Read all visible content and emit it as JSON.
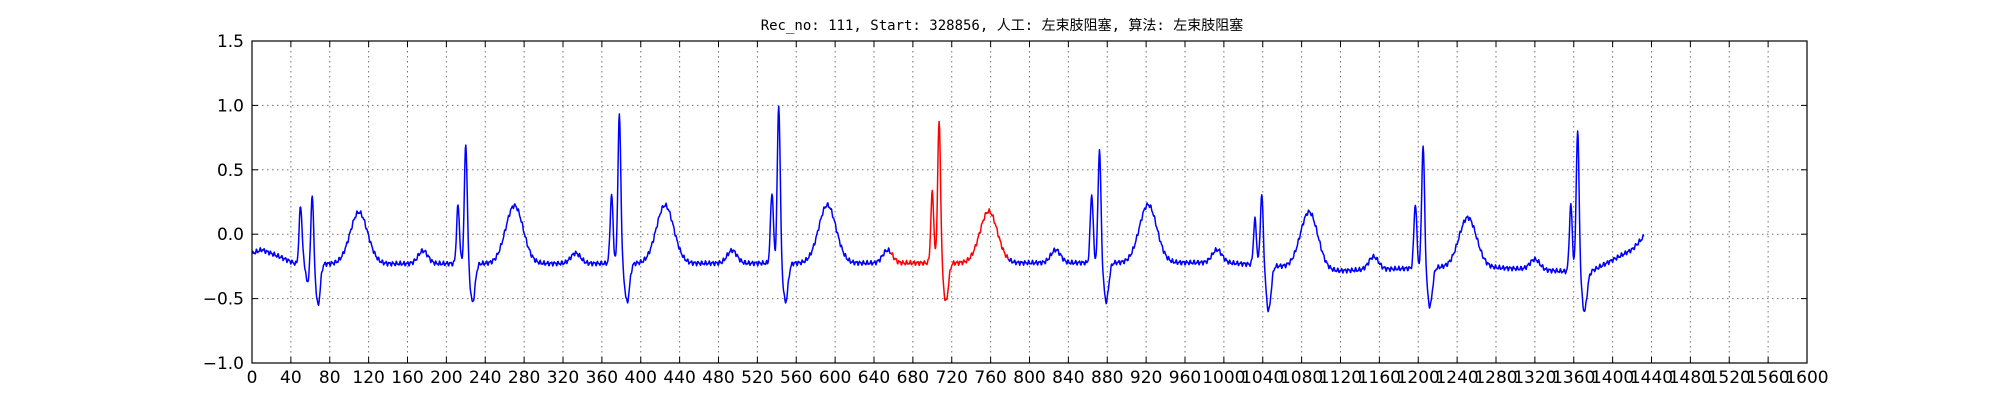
{
  "chart_data": {
    "type": "line",
    "title": "Rec_no: 111, Start: 328856, 人工: 左束肢阻塞, 算法: 左束肢阻塞",
    "xlabel": "",
    "ylabel": "",
    "xlim": [
      0,
      1600
    ],
    "ylim": [
      -1.0,
      1.5
    ],
    "grid": true,
    "yticks": [
      -1.0,
      -0.5,
      0.0,
      0.5,
      1.0,
      1.5
    ],
    "ytick_labels": [
      "−1.0",
      "−0.5",
      "0.0",
      "0.5",
      "1.0",
      "1.5"
    ],
    "xticks": [
      0,
      40,
      80,
      120,
      160,
      200,
      240,
      280,
      320,
      360,
      400,
      440,
      480,
      520,
      560,
      600,
      640,
      680,
      720,
      760,
      800,
      840,
      880,
      920,
      960,
      1000,
      1040,
      1080,
      1120,
      1160,
      1200,
      1240,
      1280,
      1320,
      1360,
      1400,
      1440,
      1480,
      1520,
      1560,
      1600
    ],
    "xtick_labels": [
      "0",
      "40",
      "80",
      "120",
      "160",
      "200",
      "240",
      "280",
      "320",
      "360",
      "400",
      "440",
      "480",
      "520",
      "560",
      "600",
      "640",
      "680",
      "720",
      "760",
      "800",
      "840",
      "880",
      "920",
      "960",
      "1000",
      "1040",
      "1080",
      "1120",
      "1160",
      "1200",
      "1240",
      "1280",
      "1320",
      "1360",
      "1400",
      "1440",
      "1480",
      "1520",
      "1560",
      "1600"
    ],
    "x_extent": [
      0,
      1432
    ],
    "baseline_points": [
      [
        0,
        -0.15
      ],
      [
        10,
        -0.12
      ],
      [
        30,
        -0.18
      ],
      [
        45,
        -0.23
      ],
      [
        58,
        -0.23
      ],
      [
        1000,
        -0.22
      ],
      [
        1080,
        -0.26
      ],
      [
        1094,
        -0.29
      ],
      [
        1250,
        -0.25
      ],
      [
        1310,
        -0.27
      ],
      [
        1375,
        -0.3
      ],
      [
        1420,
        -0.12
      ],
      [
        1432,
        -0.02
      ]
    ],
    "segments": [
      {
        "start": 0,
        "end": 657,
        "color": "#0000ff"
      },
      {
        "start": 657,
        "end": 778,
        "color": "#ff0000"
      },
      {
        "start": 778,
        "end": 1432,
        "color": "#0000ff"
      }
    ],
    "features": [
      {
        "x": 50,
        "amp": 0.45,
        "w": 1.5
      },
      {
        "x": 57,
        "amp": -0.15,
        "w": 1.4
      },
      {
        "x": 62,
        "amp": 0.55,
        "w": 1.3
      },
      {
        "x": 68,
        "amp": -0.32,
        "w": 2.2
      },
      {
        "x": 110,
        "amp": 0.4,
        "w": 9
      },
      {
        "x": 176,
        "amp": 0.1,
        "w": 5
      },
      {
        "x": 212,
        "amp": 0.45,
        "w": 1.5
      },
      {
        "x": 220,
        "amp": 0.93,
        "w": 1.5
      },
      {
        "x": 227,
        "amp": -0.3,
        "w": 2.5
      },
      {
        "x": 270,
        "amp": 0.45,
        "w": 9
      },
      {
        "x": 333,
        "amp": 0.08,
        "w": 5
      },
      {
        "x": 370,
        "amp": 0.53,
        "w": 1.5
      },
      {
        "x": 378,
        "amp": 1.15,
        "w": 1.5
      },
      {
        "x": 386,
        "amp": -0.3,
        "w": 2.5
      },
      {
        "x": 425,
        "amp": 0.45,
        "w": 9
      },
      {
        "x": 494,
        "amp": 0.1,
        "w": 5
      },
      {
        "x": 535,
        "amp": 0.55,
        "w": 1.5
      },
      {
        "x": 542,
        "amp": 1.23,
        "w": 1.5
      },
      {
        "x": 549,
        "amp": -0.3,
        "w": 2.5
      },
      {
        "x": 592,
        "amp": 0.45,
        "w": 9
      },
      {
        "x": 654,
        "amp": 0.1,
        "w": 5
      },
      {
        "x": 700,
        "amp": 0.55,
        "w": 1.5
      },
      {
        "x": 707,
        "amp": 1.1,
        "w": 1.5
      },
      {
        "x": 714,
        "amp": -0.3,
        "w": 2.5
      },
      {
        "x": 758,
        "amp": 0.4,
        "w": 9
      },
      {
        "x": 827,
        "amp": 0.1,
        "w": 5
      },
      {
        "x": 864,
        "amp": 0.53,
        "w": 1.5
      },
      {
        "x": 872,
        "amp": 0.88,
        "w": 1.5
      },
      {
        "x": 879,
        "amp": -0.3,
        "w": 2.5
      },
      {
        "x": 922,
        "amp": 0.45,
        "w": 9
      },
      {
        "x": 993,
        "amp": 0.1,
        "w": 5
      },
      {
        "x": 1032,
        "amp": 0.35,
        "w": 1.5
      },
      {
        "x": 1039,
        "amp": 0.55,
        "w": 1.5
      },
      {
        "x": 1046,
        "amp": -0.35,
        "w": 2.5
      },
      {
        "x": 1088,
        "amp": 0.45,
        "w": 9
      },
      {
        "x": 1154,
        "amp": 0.1,
        "w": 5
      },
      {
        "x": 1197,
        "amp": 0.5,
        "w": 1.5
      },
      {
        "x": 1205,
        "amp": 0.95,
        "w": 1.5
      },
      {
        "x": 1212,
        "amp": -0.3,
        "w": 2.5
      },
      {
        "x": 1251,
        "amp": 0.38,
        "w": 9
      },
      {
        "x": 1320,
        "amp": 0.08,
        "w": 5
      },
      {
        "x": 1357,
        "amp": 0.52,
        "w": 1.5
      },
      {
        "x": 1364,
        "amp": 1.1,
        "w": 1.5
      },
      {
        "x": 1371,
        "amp": -0.3,
        "w": 2.5
      }
    ]
  }
}
